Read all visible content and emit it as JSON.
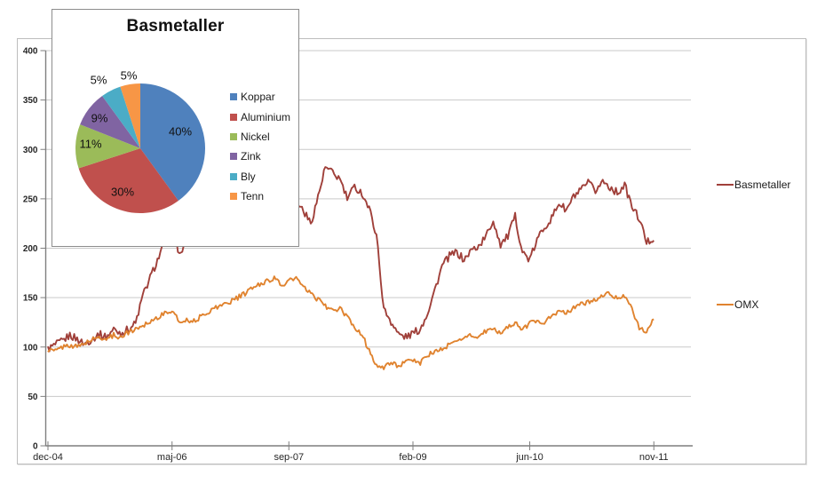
{
  "chart_data": [
    {
      "type": "line",
      "title": "",
      "x_start": "dec-04",
      "x_end": "nov-11",
      "x_tick_labels": [
        "dec-04",
        "maj-06",
        "sep-07",
        "feb-09",
        "jun-10",
        "nov-11"
      ],
      "x_tick_months": [
        0,
        17,
        33,
        50,
        66,
        83
      ],
      "ylim": [
        0,
        400
      ],
      "y_tick_step": 50,
      "y_tick_labels": [
        "0",
        "50",
        "100",
        "150",
        "200",
        "250",
        "300",
        "350",
        "400"
      ],
      "grid": "horizontal",
      "legend_position": "right",
      "x_unit": "months from dec-04, monthly values",
      "series": [
        {
          "name": "Basmetaller",
          "color": "#A0403A",
          "values": [
            98,
            102,
            106,
            112,
            108,
            103,
            108,
            113,
            110,
            118,
            114,
            118,
            124,
            152,
            170,
            188,
            205,
            228,
            193,
            206,
            215,
            210,
            220,
            230,
            236,
            228,
            222,
            238,
            248,
            254,
            246,
            256,
            235,
            250,
            248,
            238,
            225,
            252,
            282,
            276,
            270,
            250,
            262,
            256,
            240,
            214,
            138,
            126,
            113,
            110,
            114,
            118,
            135,
            158,
            182,
            192,
            196,
            188,
            198,
            202,
            212,
            228,
            204,
            212,
            232,
            196,
            188,
            208,
            222,
            230,
            246,
            238,
            252,
            258,
            266,
            258,
            268,
            262,
            256,
            264,
            242,
            230,
            206,
            210
          ]
        },
        {
          "name": "OMX",
          "color": "#E0832F",
          "values": [
            97,
            96,
            100,
            102,
            100,
            104,
            107,
            110,
            108,
            112,
            110,
            115,
            118,
            122,
            126,
            130,
            134,
            137,
            125,
            128,
            126,
            131,
            136,
            140,
            143,
            146,
            150,
            154,
            160,
            163,
            167,
            170,
            162,
            167,
            170,
            160,
            154,
            148,
            142,
            136,
            139,
            130,
            120,
            113,
            96,
            82,
            78,
            85,
            81,
            84,
            87,
            84,
            92,
            95,
            98,
            102,
            106,
            110,
            112,
            110,
            116,
            118,
            114,
            121,
            124,
            118,
            124,
            127,
            125,
            131,
            136,
            134,
            140,
            143,
            146,
            148,
            152,
            154,
            150,
            152,
            138,
            120,
            114,
            128
          ]
        }
      ]
    },
    {
      "type": "pie",
      "title": "Basmetaller",
      "start_angle_deg": 0,
      "direction": "clockwise",
      "legend_position": "right",
      "slices": [
        {
          "label": "Koppar",
          "value": 40,
          "pct_text": "40%",
          "color": "#4F81BD"
        },
        {
          "label": "Aluminium",
          "value": 30,
          "pct_text": "30%",
          "color": "#C0504D"
        },
        {
          "label": "Nickel",
          "value": 11,
          "pct_text": "11%",
          "color": "#9BBB59"
        },
        {
          "label": "Zink",
          "value": 9,
          "pct_text": "9%",
          "color": "#8064A2"
        },
        {
          "label": "Bly",
          "value": 5,
          "pct_text": "5%",
          "color": "#4BACC6"
        },
        {
          "label": "Tenn",
          "value": 5,
          "pct_text": "5%",
          "color": "#F79646"
        }
      ]
    }
  ]
}
